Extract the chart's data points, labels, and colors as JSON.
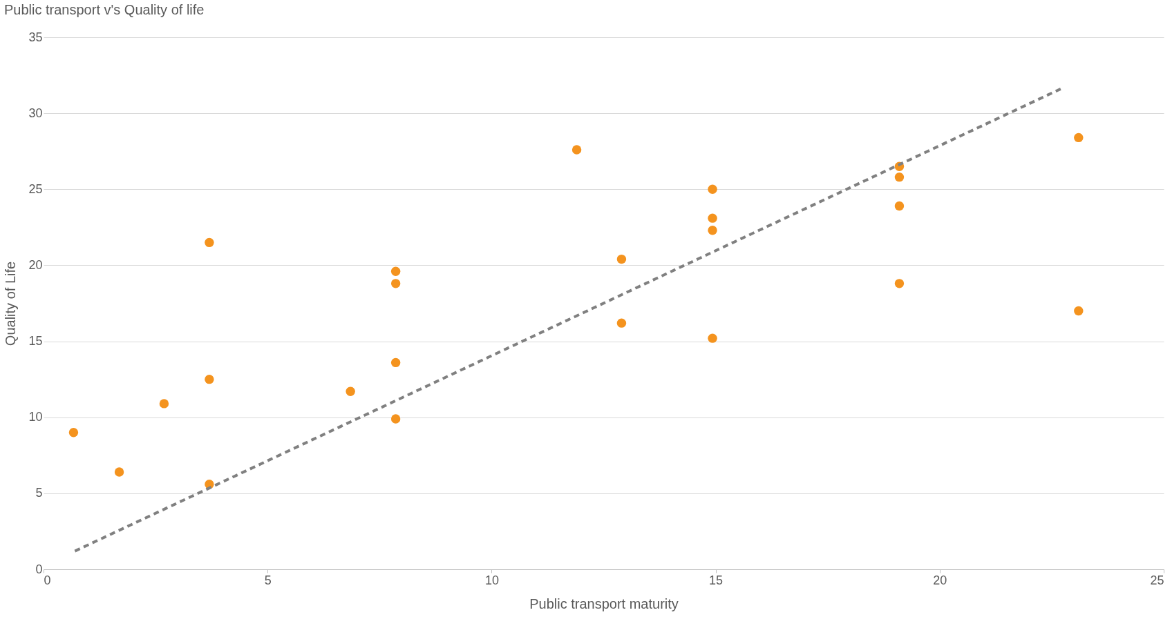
{
  "chart_data": {
    "type": "scatter",
    "title": "Public transport v's Quality of life",
    "xlabel": "Public transport maturity",
    "ylabel": "Quality of Life",
    "xlim": [
      0,
      25
    ],
    "xticks": [
      0,
      5,
      10,
      15,
      20,
      25
    ],
    "ylim": [
      0,
      35
    ],
    "yticks": [
      0,
      5,
      10,
      15,
      20,
      25,
      30,
      35
    ],
    "grid": "y",
    "series": [
      {
        "marker": "circle",
        "color": "#f4931e",
        "x": [
          0.67,
          1.69,
          2.69,
          3.7,
          3.7,
          3.7,
          6.85,
          7.86,
          7.86,
          7.86,
          7.86,
          11.9,
          12.9,
          12.9,
          14.93,
          14.93,
          14.93,
          14.93,
          19.1,
          19.1,
          19.1,
          19.1,
          23.1,
          23.1
        ],
        "values": [
          9.0,
          6.4,
          10.9,
          21.5,
          12.5,
          5.6,
          11.7,
          19.6,
          18.8,
          13.6,
          9.9,
          27.6,
          20.4,
          16.2,
          25.0,
          23.1,
          22.3,
          15.2,
          26.5,
          25.8,
          23.9,
          18.8,
          28.4,
          17.0
        ]
      },
      {
        "type": "line",
        "color": "#808080",
        "line_style": "dashed",
        "x": [
          0.7,
          22.7
        ],
        "values": [
          1.2,
          31.6
        ]
      }
    ]
  }
}
